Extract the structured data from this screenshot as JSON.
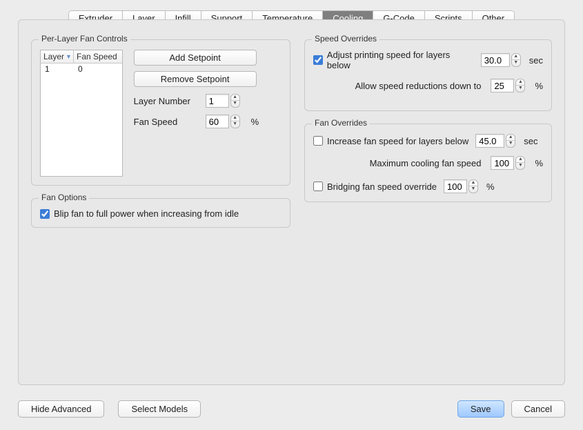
{
  "tabs": [
    "Extruder",
    "Layer",
    "Infill",
    "Support",
    "Temperature",
    "Cooling",
    "G-Code",
    "Scripts",
    "Other"
  ],
  "active_tab": "Cooling",
  "groups": {
    "per_layer": {
      "title": "Per-Layer Fan Controls",
      "columns": {
        "layer": "Layer",
        "speed": "Fan Speed"
      },
      "rows": [
        {
          "layer": "1",
          "speed": "0"
        }
      ],
      "add_btn": "Add Setpoint",
      "remove_btn": "Remove Setpoint",
      "layer_number_label": "Layer Number",
      "layer_number_value": "1",
      "fan_speed_label": "Fan Speed",
      "fan_speed_value": "60",
      "fan_speed_unit": "%"
    },
    "fan_options": {
      "title": "Fan Options",
      "blip_label": "Blip fan to full power when increasing from idle",
      "blip_checked": true
    },
    "speed_overrides": {
      "title": "Speed Overrides",
      "adjust_label": "Adjust printing speed for layers below",
      "adjust_checked": true,
      "adjust_value": "30.0",
      "adjust_unit": "sec",
      "reduction_label": "Allow speed reductions down to",
      "reduction_value": "25",
      "reduction_unit": "%"
    },
    "fan_overrides": {
      "title": "Fan Overrides",
      "increase_label": "Increase fan speed for layers below",
      "increase_checked": false,
      "increase_value": "45.0",
      "increase_unit": "sec",
      "max_label": "Maximum cooling fan speed",
      "max_value": "100",
      "max_unit": "%",
      "bridge_label": "Bridging fan speed override",
      "bridge_checked": false,
      "bridge_value": "100",
      "bridge_unit": "%"
    }
  },
  "buttons": {
    "hide_advanced": "Hide Advanced",
    "select_models": "Select Models",
    "save": "Save",
    "cancel": "Cancel"
  },
  "colors": {
    "bg": "#ececec",
    "panel_border": "#c8c8c8",
    "active_tab_bg": "#7f7f7f",
    "accent": "#3b7dd8",
    "primary_btn_top": "#cfe6ff",
    "primary_btn_bot": "#9ec8ff"
  }
}
